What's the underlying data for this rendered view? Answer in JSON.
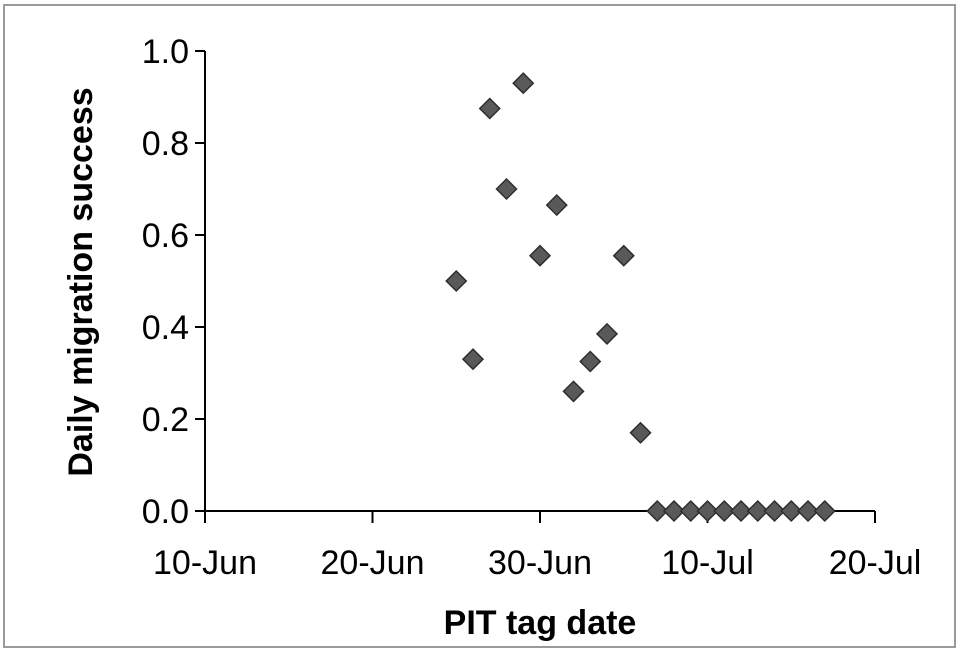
{
  "chart_data": {
    "type": "scatter",
    "title": "",
    "xlabel": "PIT tag date",
    "ylabel": "Daily migration success",
    "x_axis": {
      "type": "date",
      "min": "2010-06-10",
      "max": "2010-07-20",
      "ticks": [
        "10-Jun",
        "20-Jun",
        "30-Jun",
        "10-Jul",
        "20-Jul"
      ]
    },
    "y_axis": {
      "min": 0.0,
      "max": 1.0,
      "ticks": [
        "0.0",
        "0.2",
        "0.4",
        "0.6",
        "0.8",
        "1.0"
      ]
    },
    "grid": false,
    "legend": "none",
    "marker": {
      "shape": "diamond",
      "color": "#595959",
      "stroke": "#2e2e2e"
    },
    "points": [
      {
        "x": "2010-06-25",
        "y": 0.5
      },
      {
        "x": "2010-06-26",
        "y": 0.33
      },
      {
        "x": "2010-06-27",
        "y": 0.875
      },
      {
        "x": "2010-06-28",
        "y": 0.7
      },
      {
        "x": "2010-06-29",
        "y": 0.93
      },
      {
        "x": "2010-06-30",
        "y": 0.555
      },
      {
        "x": "2010-07-01",
        "y": 0.665
      },
      {
        "x": "2010-07-02",
        "y": 0.26
      },
      {
        "x": "2010-07-03",
        "y": 0.325
      },
      {
        "x": "2010-07-04",
        "y": 0.385
      },
      {
        "x": "2010-07-05",
        "y": 0.555
      },
      {
        "x": "2010-07-06",
        "y": 0.17
      },
      {
        "x": "2010-07-07",
        "y": 0.0
      },
      {
        "x": "2010-07-08",
        "y": 0.0
      },
      {
        "x": "2010-07-09",
        "y": 0.0
      },
      {
        "x": "2010-07-10",
        "y": 0.0
      },
      {
        "x": "2010-07-11",
        "y": 0.0
      },
      {
        "x": "2010-07-12",
        "y": 0.0
      },
      {
        "x": "2010-07-13",
        "y": 0.0
      },
      {
        "x": "2010-07-14",
        "y": 0.0
      },
      {
        "x": "2010-07-15",
        "y": 0.0
      },
      {
        "x": "2010-07-16",
        "y": 0.0
      },
      {
        "x": "2010-07-17",
        "y": 0.0
      }
    ]
  }
}
